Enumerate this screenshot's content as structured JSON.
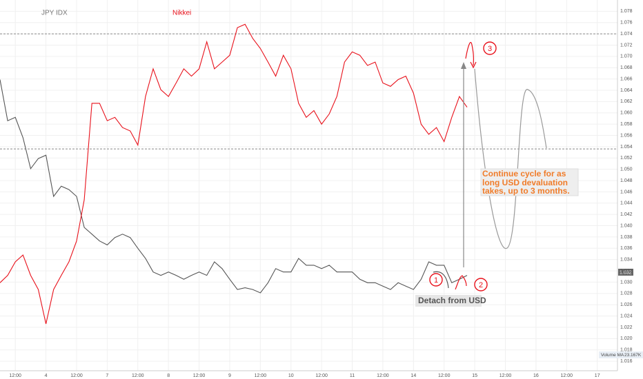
{
  "chart_data": {
    "type": "line",
    "series": [
      {
        "name": "JPY IDX",
        "color": "#555555",
        "values": [
          1.0659,
          1.0586,
          1.0592,
          1.0556,
          1.0501,
          1.0519,
          1.0525,
          1.0452,
          1.047,
          1.0464,
          1.0452,
          1.0397,
          1.0385,
          1.0373,
          1.0366,
          1.0379,
          1.0385,
          1.0379,
          1.036,
          1.0342,
          1.0318,
          1.0312,
          1.0318,
          1.0312,
          1.0305,
          1.0312,
          1.0318,
          1.0312,
          1.0336,
          1.0324,
          1.0305,
          1.0287,
          1.029,
          1.0287,
          1.0281,
          1.0299,
          1.0324,
          1.0318,
          1.0318,
          1.0342,
          1.033,
          1.033,
          1.0324,
          1.033,
          1.0318,
          1.0318,
          1.0318,
          1.0305,
          1.0299,
          1.0299,
          1.0293,
          1.0287,
          1.0299,
          1.0293,
          1.0287,
          1.0305,
          1.0336,
          1.033,
          1.033,
          1.0299,
          1.0305,
          1.0312
        ]
      },
      {
        "name": "Nikkei",
        "color": "#e8101a",
        "values": [
          1.0299,
          1.0312,
          1.0336,
          1.0348,
          1.0312,
          1.0287,
          1.0226,
          1.0287,
          1.0312,
          1.0336,
          1.0373,
          1.0446,
          1.0617,
          1.0617,
          1.0586,
          1.0592,
          1.0574,
          1.0568,
          1.0543,
          1.0629,
          1.0678,
          1.0641,
          1.0629,
          1.0653,
          1.0678,
          1.0665,
          1.0678,
          1.0726,
          1.0678,
          1.069,
          1.0702,
          1.0751,
          1.0757,
          1.0732,
          1.0714,
          1.069,
          1.0665,
          1.0702,
          1.0678,
          1.0617,
          1.0592,
          1.0604,
          1.058,
          1.0598,
          1.0629,
          1.069,
          1.0708,
          1.0702,
          1.0684,
          1.069,
          1.0653,
          1.0647,
          1.0659,
          1.0665,
          1.0635,
          1.058,
          1.0562,
          1.0574,
          1.0549,
          1.0592,
          1.0629,
          1.061
        ]
      }
    ],
    "x": [
      0.5,
      0.75,
      1,
      1.25,
      1.5,
      1.75,
      2,
      2.25,
      2.5,
      2.75,
      3,
      3.25,
      3.5,
      3.75,
      4,
      4.25,
      4.5,
      4.75,
      5,
      5.25,
      5.5,
      5.75,
      6,
      6.25,
      6.5,
      6.75,
      7,
      7.25,
      7.5,
      7.75,
      8,
      8.25,
      8.5,
      8.75,
      9,
      9.25,
      9.5,
      9.75,
      10,
      10.25,
      10.5,
      10.75,
      11,
      11.25,
      11.5,
      11.75,
      12,
      12.25,
      12.5,
      12.75,
      13,
      13.25,
      13.5,
      13.75,
      14,
      14.25,
      14.5,
      14.75,
      15,
      15.25,
      15.5,
      15.75
    ],
    "xlim": [
      0.5,
      20.66
    ],
    "xticks": [
      {
        "value": 1,
        "label": "12:00"
      },
      {
        "value": 2,
        "label": "4"
      },
      {
        "value": 3,
        "label": "12:00"
      },
      {
        "value": 4,
        "label": "7"
      },
      {
        "value": 5,
        "label": "12:00"
      },
      {
        "value": 6,
        "label": "8"
      },
      {
        "value": 7,
        "label": "12:00"
      },
      {
        "value": 8,
        "label": "9"
      },
      {
        "value": 9,
        "label": "12:00"
      },
      {
        "value": 10,
        "label": "10"
      },
      {
        "value": 11,
        "label": "12:00"
      },
      {
        "value": 12,
        "label": "11"
      },
      {
        "value": 13,
        "label": "12:00"
      },
      {
        "value": 14,
        "label": "14"
      },
      {
        "value": 15,
        "label": "12:00"
      },
      {
        "value": 16,
        "label": "15"
      },
      {
        "value": 17,
        "label": "12:00"
      },
      {
        "value": 18,
        "label": "16"
      },
      {
        "value": 19,
        "label": "12:00"
      },
      {
        "value": 20,
        "label": "17"
      }
    ],
    "ylim": [
      1.0143,
      1.08
    ],
    "yticks": [
      1.016,
      1.018,
      {
        "value": 1.02,
        "label": "1.020"
      },
      1.022,
      1.024,
      1.026,
      1.028,
      {
        "value": 1.03,
        "label": "1.030"
      },
      1.032,
      1.034,
      1.036,
      1.038,
      {
        "value": 1.04,
        "label": "1.040"
      },
      1.042,
      1.044,
      1.046,
      1.048,
      {
        "value": 1.05,
        "label": "1.050"
      },
      1.052,
      1.054,
      1.056,
      1.058,
      {
        "value": 1.06,
        "label": "1.060"
      },
      1.062,
      1.064,
      1.066,
      1.068,
      {
        "value": 1.07,
        "label": "1.070"
      },
      1.072,
      1.074,
      1.076,
      1.078
    ],
    "grid": true,
    "hlines": [
      1.074,
      1.0536
    ],
    "last_price_label": "1.032",
    "annotations": {
      "cycle": "Continue cycle for as long USD devaluation takes, up to 3 months.",
      "detach": "Detach from USD",
      "step1": "1",
      "step2": "2",
      "step3": "3",
      "volume_ma": "Volume MA",
      "volume_ma_value": "23.167K"
    }
  }
}
